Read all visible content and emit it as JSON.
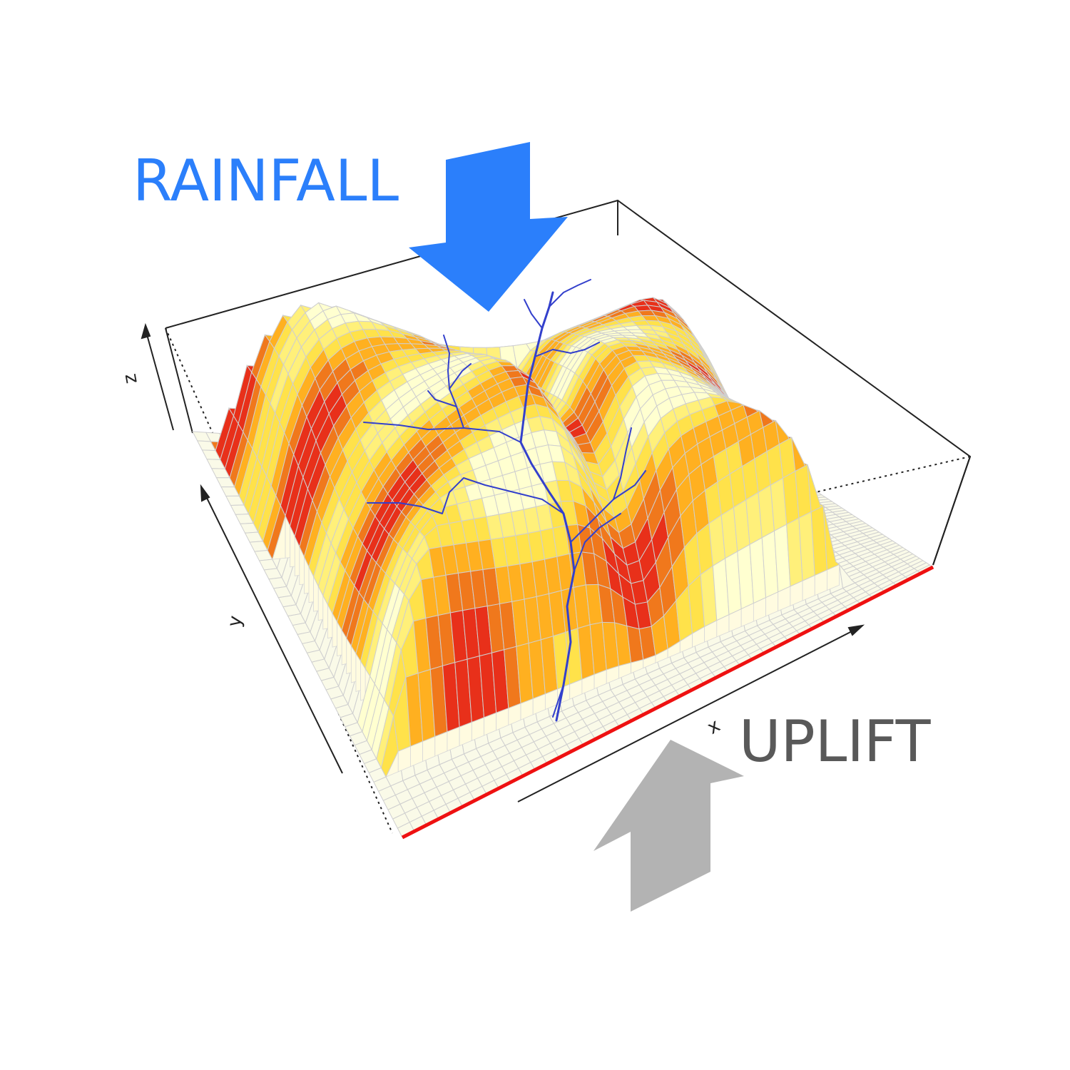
{
  "labels": {
    "rainfall": "RAINFALL",
    "uplift": "UPLIFT"
  },
  "axes": {
    "x": "x",
    "y": "y",
    "z": "z"
  },
  "colors": {
    "rainfall": "#2b7ffb",
    "uplift_arrow": "#b3b3b3",
    "uplift_text": "#595959",
    "river_network": "#3340cc",
    "outlet_edge": "#ee1111",
    "box_line": "#222222",
    "surface_low": "#ffffd0",
    "surface_mid": "#ffe24a",
    "surface_high": "#f0781c",
    "surface_max": "#e8301a"
  },
  "icons": {
    "rainfall_arrow": "arrow-down-icon",
    "uplift_arrow": "arrow-up-icon"
  }
}
